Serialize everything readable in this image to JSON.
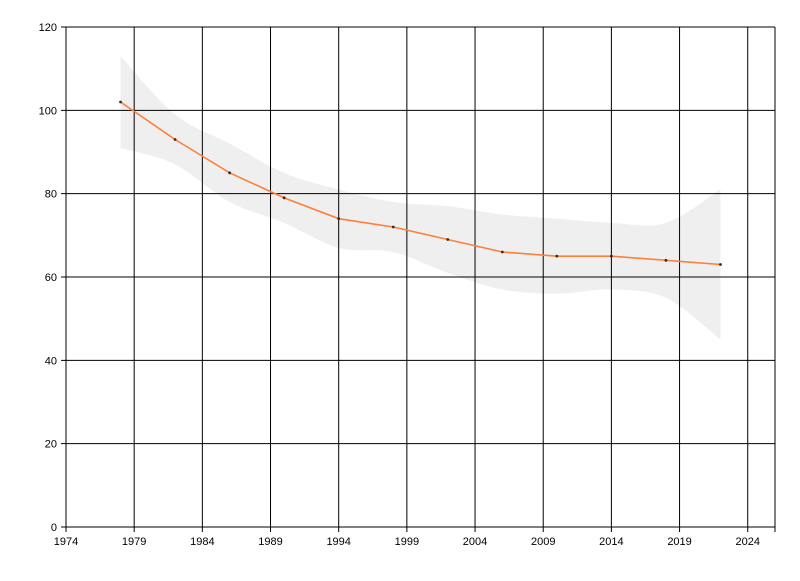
{
  "chart_data": {
    "type": "line",
    "title": "",
    "xlabel": "",
    "ylabel": "",
    "xlim": [
      1974,
      2026
    ],
    "ylim": [
      0,
      120
    ],
    "x_ticks": [
      1974,
      1979,
      1984,
      1989,
      1994,
      1999,
      2004,
      2009,
      2014,
      2019,
      2024
    ],
    "y_ticks": [
      0,
      20,
      40,
      60,
      80,
      100,
      120
    ],
    "grid": true,
    "legend": "none",
    "series": [
      {
        "x": [
          1978,
          1982,
          1986,
          1990,
          1994,
          1998,
          2002,
          2006,
          2010,
          2014,
          2018,
          2022
        ],
        "values": [
          102,
          93,
          85,
          79,
          74,
          72,
          69,
          66,
          65,
          65,
          64,
          63
        ],
        "color": "#ff7f3a"
      }
    ],
    "band": {
      "x": [
        1978,
        1982,
        1986,
        1990,
        1994,
        1998,
        2002,
        2006,
        2010,
        2014,
        2018,
        2022
      ],
      "upper": [
        113,
        99,
        92,
        85,
        81,
        78,
        77,
        75,
        74,
        73,
        73,
        81
      ],
      "lower": [
        91,
        87,
        78,
        73,
        67,
        66,
        61,
        57,
        56,
        57,
        55,
        45
      ],
      "color": "#efefef"
    },
    "grid_color": "#000000"
  }
}
